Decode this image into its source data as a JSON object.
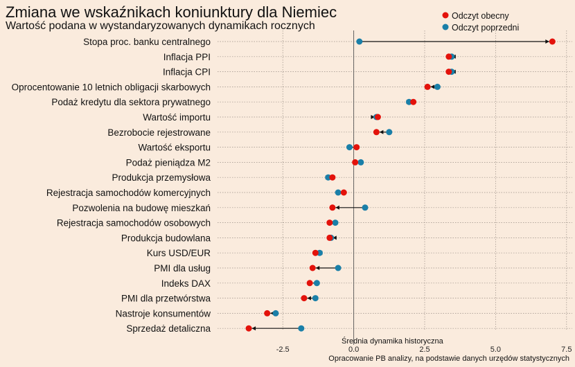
{
  "chart_data": {
    "type": "dumbbell",
    "title": "Zmiana we wskaźnikach koniunktury dla Niemiec",
    "subtitle": "Wartość podana w wystandaryzowanych dynamikach rocznych",
    "zero_line_label": "Średnia dynamika historyczna",
    "source": "Opracowanie PB analizy, na podstawie danych urzędów statystycznych",
    "xlim": [
      -4.8,
      7.7
    ],
    "xticks": [
      -2.5,
      0.0,
      2.5,
      5.0,
      7.5
    ],
    "tick_labels": [
      "-2.5",
      "0.0",
      "2.5",
      "5.0",
      "7.5"
    ],
    "grid": true,
    "legend_position": "top-right",
    "series": [
      {
        "name": "Odczyt obecny",
        "color": "#E3120B"
      },
      {
        "name": "Odczyt poprzedni",
        "color": "#1A7FA8"
      }
    ],
    "categories": [
      "Stopa proc. banku centralnego",
      "Inflacja PPI",
      "Inflacja CPI",
      "Oprocentowanie 10 letnich obligacji skarbowych",
      "Podaż kredytu dla sektora prywatnego",
      "Wartość importu",
      "Bezrobocie rejestrowane",
      "Wartość eksportu",
      "Podaż pieniądza M2",
      "Produkcja przemysłowa",
      "Rejestracja samochodów komercyjnych",
      "Pozwolenia na budowę mieszkań",
      "Rejestracja samochodów osobowych",
      "Produkcja budowlana",
      "Kurs USD/EUR",
      "PMI dla usług",
      "Indeks DAX",
      "PMI dla przetwórstwa",
      "Nastroje konsumentów",
      "Sprzedaż detaliczna"
    ],
    "current": [
      7.0,
      3.35,
      3.35,
      2.6,
      2.1,
      0.85,
      0.8,
      0.1,
      0.05,
      -0.75,
      -0.35,
      -0.75,
      -0.85,
      -0.85,
      -1.35,
      -1.45,
      -1.55,
      -1.75,
      -3.05,
      -3.7
    ],
    "previous": [
      0.2,
      3.45,
      3.45,
      2.95,
      1.95,
      0.8,
      1.25,
      -0.15,
      0.25,
      -0.9,
      -0.55,
      0.4,
      -0.65,
      -0.8,
      -1.2,
      -0.55,
      -1.3,
      -1.35,
      -2.75,
      -1.85
    ]
  }
}
